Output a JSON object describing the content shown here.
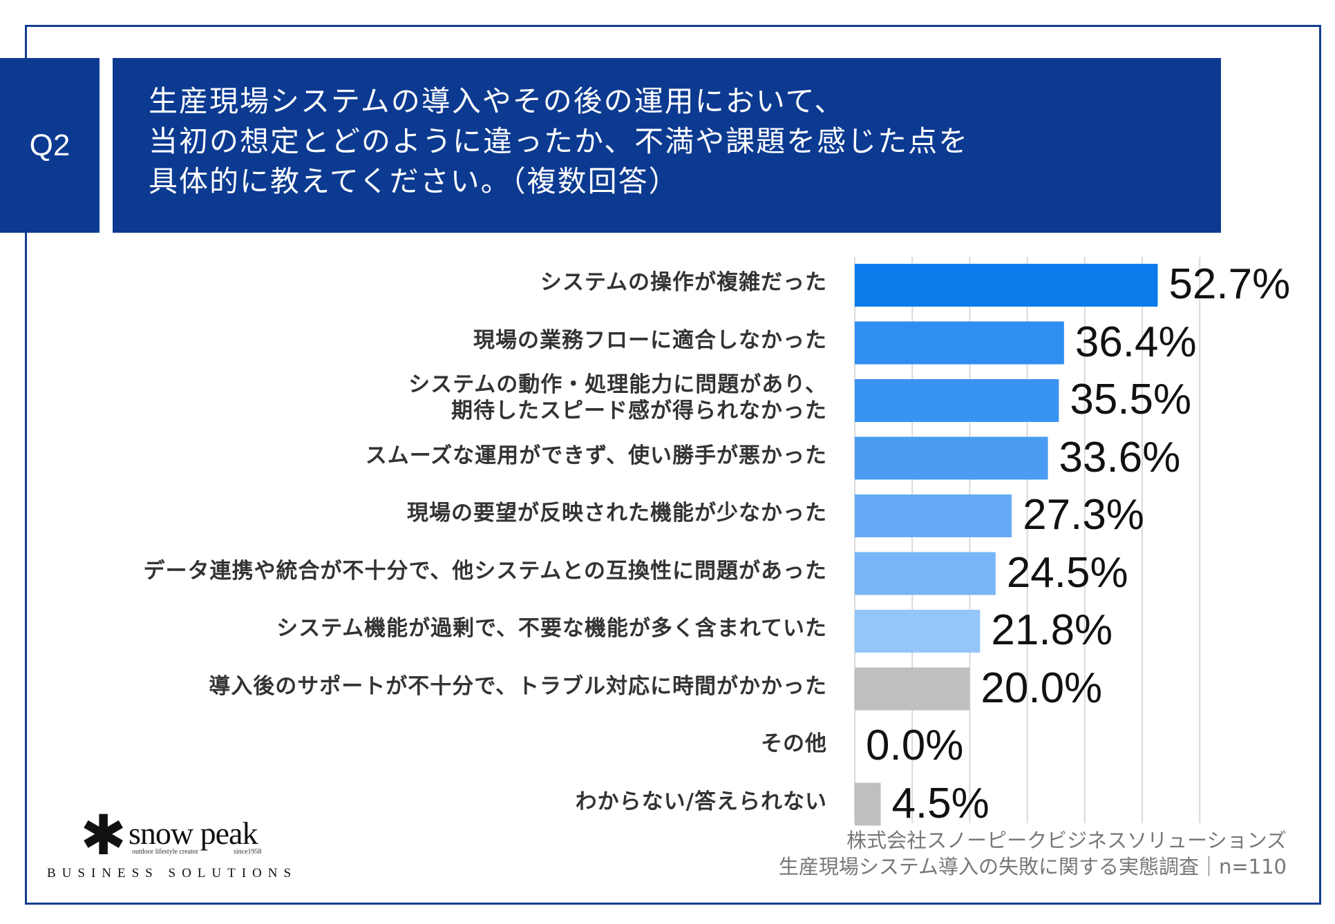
{
  "question": {
    "badge": "Q2",
    "lines": [
      "生産現場システムの導入やその後の運用において、",
      "当初の想定とどのように違ったか、不満や課題を感じた点を",
      "具体的に教えてください。（複数回答）"
    ]
  },
  "chart_data": {
    "type": "bar",
    "orientation": "horizontal",
    "title": "生産現場システムの導入やその後の運用において、当初の想定とどのように違ったか、不満や課題を感じた点を具体的に教えてください。（複数回答）",
    "categories": [
      "システムの操作が複雑だった",
      "現場の業務フローに適合しなかった",
      "システムの動作・処理能力に問題があり、\n期待したスピード感が得られなかった",
      "スムーズな運用ができず、使い勝手が悪かった",
      "現場の要望が反映された機能が少なかった",
      "データ連携や統合が不十分で、他システムとの互換性に問題があった",
      "システム機能が過剰で、不要な機能が多く含まれていた",
      "導入後のサポートが不十分で、トラブル対応に時間がかかった",
      "その他",
      "わからない/答えられない"
    ],
    "values": [
      52.7,
      36.4,
      35.5,
      33.6,
      27.3,
      24.5,
      21.8,
      20.0,
      0.0,
      4.5
    ],
    "value_labels": [
      "52.7%",
      "36.4%",
      "35.5%",
      "33.6%",
      "27.3%",
      "24.5%",
      "21.8%",
      "20.0%",
      "0.0%",
      "4.5%"
    ],
    "colors": [
      "#0b7bec",
      "#2e8ff0",
      "#3993f1",
      "#4a9cf2",
      "#65aaf5",
      "#77b5f6",
      "#94c6f9",
      "#bfbfbf",
      "#bfbfbf",
      "#bfbfbf"
    ],
    "xlim": [
      0,
      60
    ],
    "grid": true,
    "xlabel": "",
    "ylabel": ""
  },
  "credit": {
    "company": "株式会社スノーピークビジネスソリューションズ",
    "survey": "生産現場システム導入の失敗に関する実態調査｜n=110"
  },
  "logo": {
    "name": "snow peak",
    "tagline": "outdoor lifestyle creator",
    "since": "since1958",
    "sub": "BUSINESS SOLUTIONS"
  },
  "theme": {
    "navy": "#0c3a91",
    "frame": "#123d8f",
    "grid": "#d9d9d9"
  }
}
